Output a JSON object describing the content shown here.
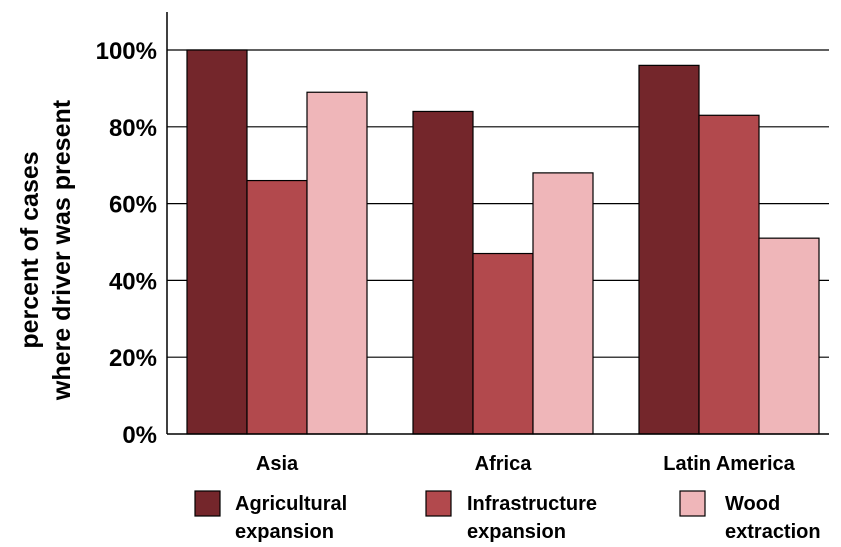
{
  "chart_data": {
    "type": "bar",
    "categories": [
      "Asia",
      "Africa",
      "Latin America"
    ],
    "series": [
      {
        "name": "Agricultural expansion",
        "name_lines": [
          "Agricultural",
          "expansion"
        ],
        "values": [
          100,
          84,
          96
        ],
        "color": "#74262b"
      },
      {
        "name": "Infrastructure expansion",
        "name_lines": [
          "Infrastructure",
          "expansion"
        ],
        "values": [
          66,
          47,
          83
        ],
        "color": "#b2494d"
      },
      {
        "name": "Wood extraction",
        "name_lines": [
          "Wood",
          "extraction"
        ],
        "values": [
          89,
          68,
          51
        ],
        "color": "#efb6b9"
      }
    ],
    "y_ticks": [
      "0%",
      "20%",
      "40%",
      "60%",
      "80%",
      "100%"
    ],
    "ylim": [
      0,
      110
    ],
    "ylabel_lines": [
      "percent of cases",
      "where driver was present"
    ],
    "grid": true,
    "legend_position": "bottom"
  }
}
